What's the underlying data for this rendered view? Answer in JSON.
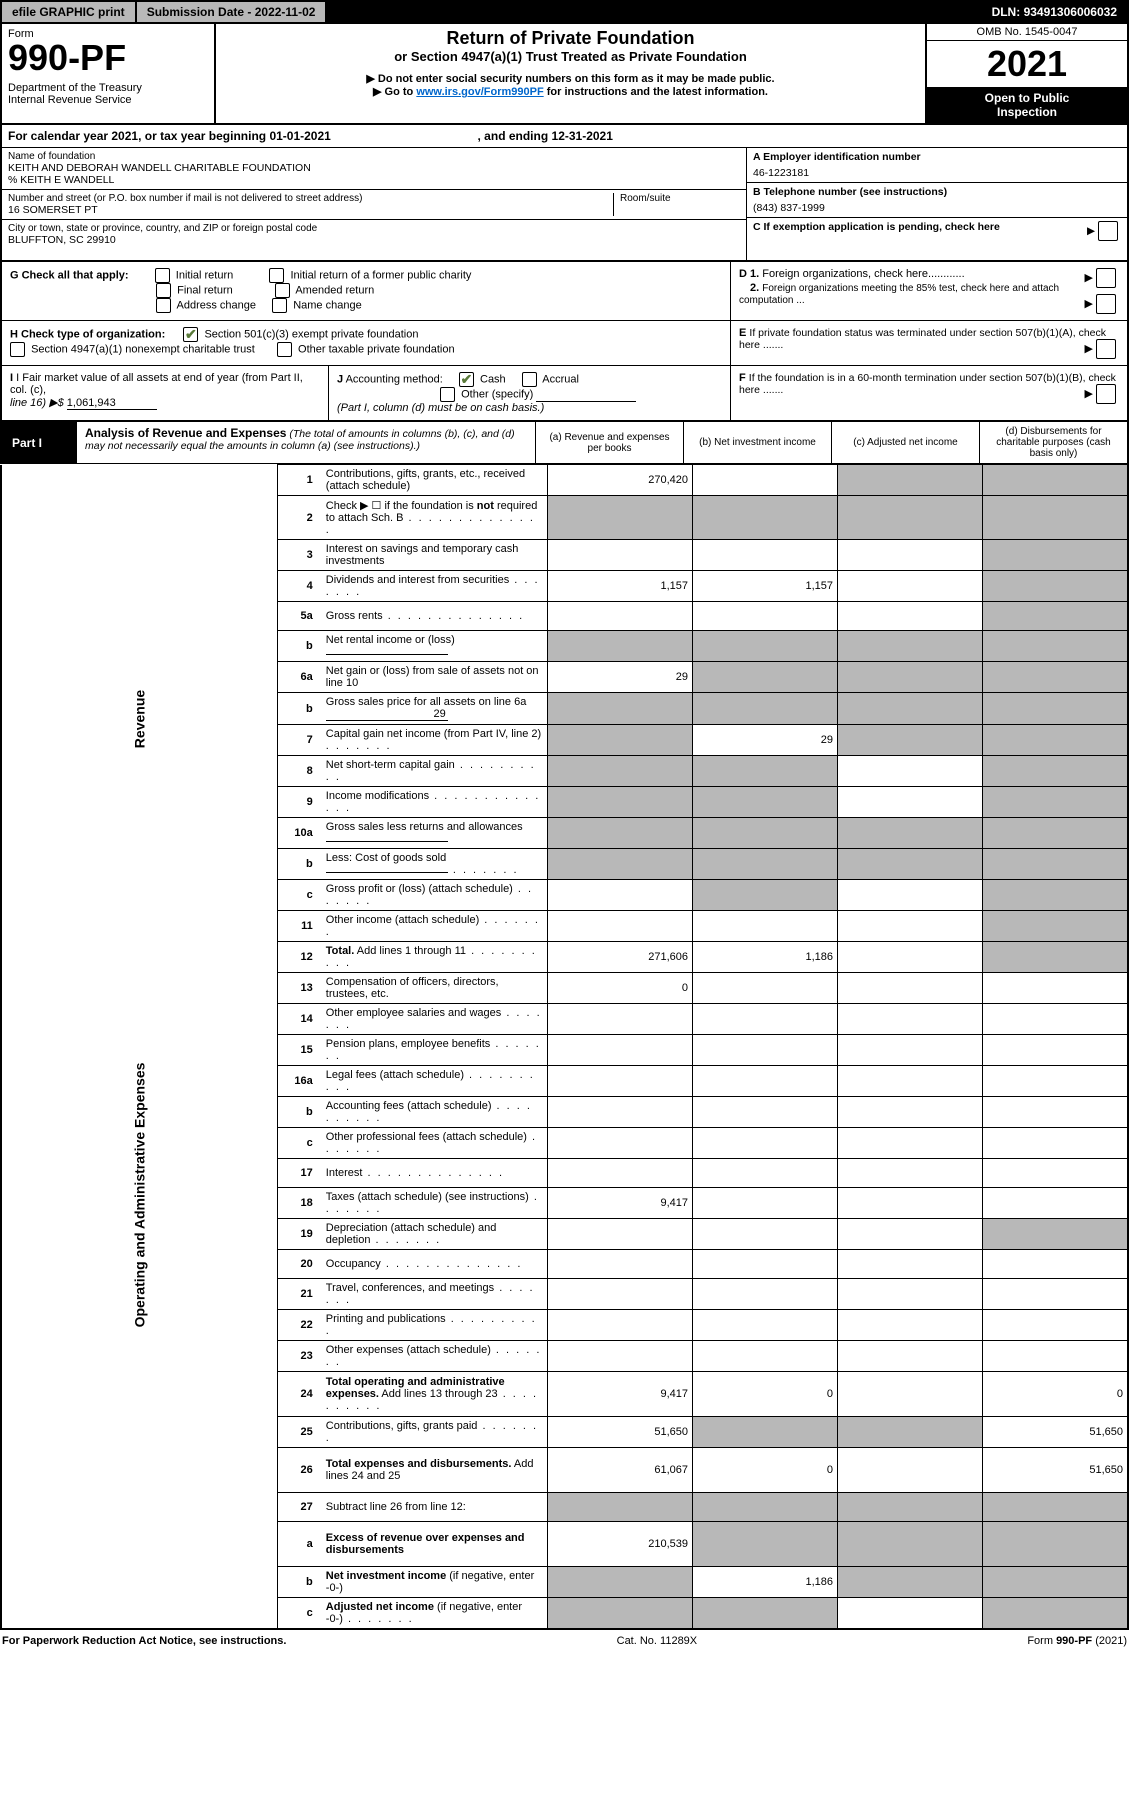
{
  "top": {
    "efile": "efile GRAPHIC print",
    "subdate_label": "Submission Date - ",
    "subdate": "2022-11-02",
    "dln_label": "DLN: ",
    "dln": "93491306006032"
  },
  "header": {
    "form_label": "Form",
    "form_no": "990-PF",
    "dept1": "Department of the Treasury",
    "dept2": "Internal Revenue Service",
    "title": "Return of Private Foundation",
    "subtitle": "or Section 4947(a)(1) Trust Treated as Private Foundation",
    "note1": "▶ Do not enter social security numbers on this form as it may be made public.",
    "note2_pre": "▶ Go to ",
    "note2_link": "www.irs.gov/Form990PF",
    "note2_post": " for instructions and the latest information.",
    "omb": "OMB No. 1545-0047",
    "year": "2021",
    "badge1": "Open to Public",
    "badge2": "Inspection"
  },
  "cal": {
    "line_a": "For calendar year 2021, or tax year beginning 01-01-2021",
    "line_b": ", and ending 12-31-2021"
  },
  "id": {
    "name_label": "Name of foundation",
    "name": "KEITH AND DEBORAH WANDELL CHARITABLE FOUNDATION",
    "co": "% KEITH E WANDELL",
    "addr_label": "Number and street (or P.O. box number if mail is not delivered to street address)",
    "room_label": "Room/suite",
    "addr": "16 SOMERSET PT",
    "city_label": "City or town, state or province, country, and ZIP or foreign postal code",
    "city": "BLUFFTON, SC  29910",
    "ein_label": "A Employer identification number",
    "ein": "46-1223181",
    "tel_label": "B Telephone number (see instructions)",
    "tel": "(843) 837-1999",
    "c_label": "C If exemption application is pending, check here"
  },
  "g": {
    "label": "G Check all that apply:",
    "o1": "Initial return",
    "o2": "Final return",
    "o3": "Address change",
    "o4": "Initial return of a former public charity",
    "o5": "Amended return",
    "o6": "Name change"
  },
  "d": {
    "d1": "D 1. Foreign organizations, check here",
    "d2a": "2. Foreign organizations meeting the 85% test, check here and attach computation ...",
    "e": "E  If private foundation status was terminated under section 507(b)(1)(A), check here ......."
  },
  "h": {
    "label": "H Check type of organization:",
    "o1": "Section 501(c)(3) exempt private foundation",
    "o2": "Section 4947(a)(1) nonexempt charitable trust",
    "o3": "Other taxable private foundation"
  },
  "i": {
    "label": "I Fair market value of all assets at end of year (from Part II, col. (c),",
    "line16": "line 16) ▶$  ",
    "val": "1,061,943"
  },
  "j": {
    "label": "J Accounting method:",
    "cash": "Cash",
    "accrual": "Accrual",
    "other": "Other (specify)",
    "note": "(Part I, column (d) must be on cash basis.)"
  },
  "f": {
    "label": "F  If the foundation is in a 60-month termination under section 507(b)(1)(B), check here ......."
  },
  "part1": {
    "tab": "Part I",
    "title": "Analysis of Revenue and Expenses",
    "titlenote": " (The total of amounts in columns (b), (c), and (d) may not necessarily equal the amounts in column (a) (see instructions).)",
    "col_a": "(a)   Revenue and expenses per books",
    "col_b": "(b)   Net investment income",
    "col_c": "(c)   Adjusted net income",
    "col_d": "(d)   Disbursements for charitable purposes (cash basis only)"
  },
  "sides": {
    "rev": "Revenue",
    "exp": "Operating and Administrative Expenses"
  },
  "rows": [
    {
      "n": "1",
      "label": "Contributions, gifts, grants, etc., received (attach schedule)",
      "a": "270,420",
      "b": "",
      "c_shade": true,
      "d_shade": true
    },
    {
      "n": "2",
      "label": "Check ▶ ☐ if the foundation is <b>not</b> required to attach Sch. B",
      "a_shade": true,
      "b_shade": true,
      "c_shade": true,
      "d_shade": true,
      "dots": true
    },
    {
      "n": "3",
      "label": "Interest on savings and temporary cash investments",
      "a": "",
      "b": "",
      "c": "",
      "d_shade": true
    },
    {
      "n": "4",
      "label": "Dividends and interest from securities",
      "a": "1,157",
      "b": "1,157",
      "c": "",
      "d_shade": true,
      "dots_s": true
    },
    {
      "n": "5a",
      "label": "Gross rents",
      "a": "",
      "b": "",
      "c": "",
      "d_shade": true,
      "dots": true
    },
    {
      "n": "b",
      "label": "Net rental income or (loss)",
      "inline": true,
      "a_shade": true,
      "b_shade": true,
      "c_shade": true,
      "d_shade": true
    },
    {
      "n": "6a",
      "label": "Net gain or (loss) from sale of assets not on line 10",
      "a": "29",
      "b_shade": true,
      "c_shade": true,
      "d_shade": true
    },
    {
      "n": "b",
      "label": "Gross sales price for all assets on line 6a",
      "inline": true,
      "inline_val": "29",
      "a_shade": true,
      "b_shade": true,
      "c_shade": true,
      "d_shade": true
    },
    {
      "n": "7",
      "label": "Capital gain net income (from Part IV, line 2)",
      "a_shade": true,
      "b": "29",
      "c_shade": true,
      "d_shade": true,
      "dots_s": true
    },
    {
      "n": "8",
      "label": "Net short-term capital gain",
      "a_shade": true,
      "b_shade": true,
      "c": "",
      "d_shade": true,
      "dots_m": true
    },
    {
      "n": "9",
      "label": "Income modifications",
      "a_shade": true,
      "b_shade": true,
      "c": "",
      "d_shade": true,
      "dots": true
    },
    {
      "n": "10a",
      "label": "Gross sales less returns and allowances",
      "inline": true,
      "a_shade": true,
      "b_shade": true,
      "c_shade": true,
      "d_shade": true
    },
    {
      "n": "b",
      "label": "Less: Cost of goods sold",
      "inline": true,
      "a_shade": true,
      "b_shade": true,
      "c_shade": true,
      "d_shade": true,
      "dots_s": true
    },
    {
      "n": "c",
      "label": "Gross profit or (loss) (attach schedule)",
      "a": "",
      "b_shade": true,
      "c": "",
      "d_shade": true,
      "dots_s": true
    },
    {
      "n": "11",
      "label": "Other income (attach schedule)",
      "a": "",
      "b": "",
      "c": "",
      "d_shade": true,
      "dots_s": true
    },
    {
      "n": "12",
      "label": "<b>Total.</b> Add lines 1 through 11",
      "a": "271,606",
      "b": "1,186",
      "c": "",
      "d_shade": true,
      "dots_m": true
    },
    {
      "n": "13",
      "label": "Compensation of officers, directors, trustees, etc.",
      "a": "0",
      "b": "",
      "c": "",
      "d": ""
    },
    {
      "n": "14",
      "label": "Other employee salaries and wages",
      "a": "",
      "b": "",
      "c": "",
      "d": "",
      "dots_s": true
    },
    {
      "n": "15",
      "label": "Pension plans, employee benefits",
      "a": "",
      "b": "",
      "c": "",
      "d": "",
      "dots_s": true
    },
    {
      "n": "16a",
      "label": "Legal fees (attach schedule)",
      "a": "",
      "b": "",
      "c": "",
      "d": "",
      "dots_m": true
    },
    {
      "n": "b",
      "label": "Accounting fees (attach schedule)",
      "a": "",
      "b": "",
      "c": "",
      "d": "",
      "dots_m": true
    },
    {
      "n": "c",
      "label": "Other professional fees (attach schedule)",
      "a": "",
      "b": "",
      "c": "",
      "d": "",
      "dots_s": true
    },
    {
      "n": "17",
      "label": "Interest",
      "a": "",
      "b": "",
      "c": "",
      "d": "",
      "dots": true
    },
    {
      "n": "18",
      "label": "Taxes (attach schedule) (see instructions)",
      "a": "9,417",
      "b": "",
      "c": "",
      "d": "",
      "dots_s": true
    },
    {
      "n": "19",
      "label": "Depreciation (attach schedule) and depletion",
      "a": "",
      "b": "",
      "c": "",
      "d_shade": true,
      "dots_s": true
    },
    {
      "n": "20",
      "label": "Occupancy",
      "a": "",
      "b": "",
      "c": "",
      "d": "",
      "dots": true
    },
    {
      "n": "21",
      "label": "Travel, conferences, and meetings",
      "a": "",
      "b": "",
      "c": "",
      "d": "",
      "dots_s": true
    },
    {
      "n": "22",
      "label": "Printing and publications",
      "a": "",
      "b": "",
      "c": "",
      "d": "",
      "dots_m": true
    },
    {
      "n": "23",
      "label": "Other expenses (attach schedule)",
      "a": "",
      "b": "",
      "c": "",
      "d": "",
      "dots_s": true
    },
    {
      "n": "24",
      "label": "<b>Total operating and administrative expenses.</b> Add lines 13 through 23",
      "a": "9,417",
      "b": "0",
      "c": "",
      "d": "0",
      "dots_m": true,
      "tall": true
    },
    {
      "n": "25",
      "label": "Contributions, gifts, grants paid",
      "a": "51,650",
      "b_shade": true,
      "c_shade": true,
      "d": "51,650",
      "dots_s": true
    },
    {
      "n": "26",
      "label": "<b>Total expenses and disbursements.</b> Add lines 24 and 25",
      "a": "61,067",
      "b": "0",
      "c": "",
      "d": "51,650",
      "tall": true
    },
    {
      "n": "27",
      "label": "Subtract line 26 from line 12:",
      "a_shade": true,
      "b_shade": true,
      "c_shade": true,
      "d_shade": true
    },
    {
      "n": "a",
      "label": "<b>Excess of revenue over expenses and disbursements</b>",
      "a": "210,539",
      "b_shade": true,
      "c_shade": true,
      "d_shade": true,
      "tall": true
    },
    {
      "n": "b",
      "label": "<b>Net investment income</b> (if negative, enter -0-)",
      "a_shade": true,
      "b": "1,186",
      "c_shade": true,
      "d_shade": true
    },
    {
      "n": "c",
      "label": "<b>Adjusted net income</b> (if negative, enter -0-)",
      "a_shade": true,
      "b_shade": true,
      "c": "",
      "d_shade": true,
      "dots_s": true
    }
  ],
  "footer": {
    "left": "For Paperwork Reduction Act Notice, see instructions.",
    "mid": "Cat. No. 11289X",
    "right": "Form 990-PF (2021)"
  }
}
